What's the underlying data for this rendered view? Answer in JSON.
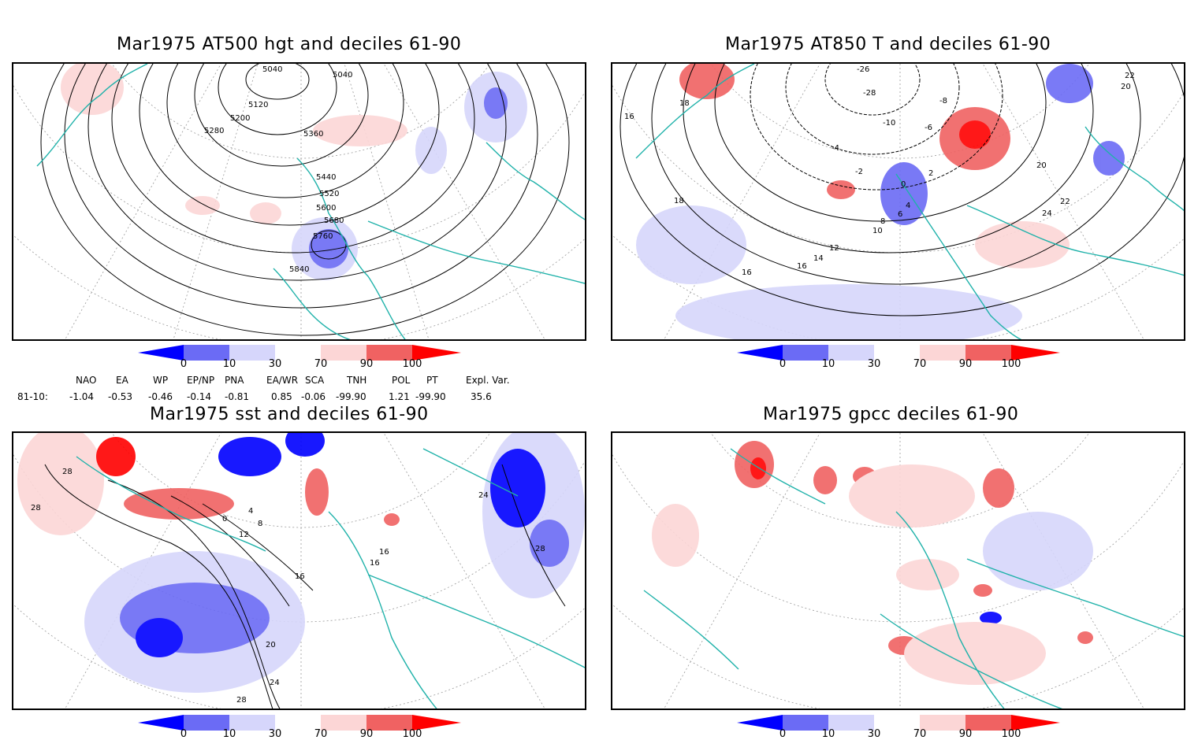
{
  "panels": [
    {
      "title": "Mar1975 AT500 hgt and deciles 61-90",
      "contour_labels": [
        "5040",
        "5040",
        "5120",
        "5200",
        "5280",
        "5360",
        "5440",
        "5520",
        "5600",
        "5680",
        "5760",
        "5840"
      ]
    },
    {
      "title": "Mar1975 AT850 T and deciles 61-90",
      "contour_labels": [
        "-26",
        "-28",
        "-10",
        "-8",
        "-6",
        "-4",
        "-2",
        "0",
        "2",
        "4",
        "6",
        "8",
        "10",
        "12",
        "14",
        "16",
        "16",
        "16",
        "18",
        "18",
        "20",
        "20",
        "22",
        "22",
        "24"
      ]
    },
    {
      "title": "Mar1975 sst and deciles 61-90",
      "contour_labels": [
        "28",
        "28",
        "0",
        "4",
        "8",
        "12",
        "16",
        "20",
        "24",
        "28",
        "28",
        "24",
        "16",
        "16"
      ]
    },
    {
      "title": "Mar1975 gpcc deciles 61-90",
      "contour_labels": []
    }
  ],
  "colorbar": {
    "labels": [
      "0",
      "10",
      "30",
      "70",
      "90",
      "100"
    ],
    "colors": [
      "#0000ff",
      "#6b6bf5",
      "#d6d6fb",
      "#ffffff",
      "#fcd6d6",
      "#f06262",
      "#ff0000"
    ]
  },
  "indices": {
    "headers": [
      "NAO",
      "EA",
      "WP",
      "EP/NP",
      "PNA",
      "EA/WR",
      "SCA",
      "TNH",
      "POL",
      "PT",
      "Expl. Var."
    ],
    "row_label": "81-10:",
    "values": [
      "-1.04",
      "-0.53",
      "-0.46",
      "-0.14",
      "-0.81",
      "0.85",
      "-0.06",
      "-99.90",
      "1.21",
      "-99.90",
      "35.6"
    ]
  },
  "colors": {
    "coast": "#20b2aa",
    "frame": "#000000"
  }
}
